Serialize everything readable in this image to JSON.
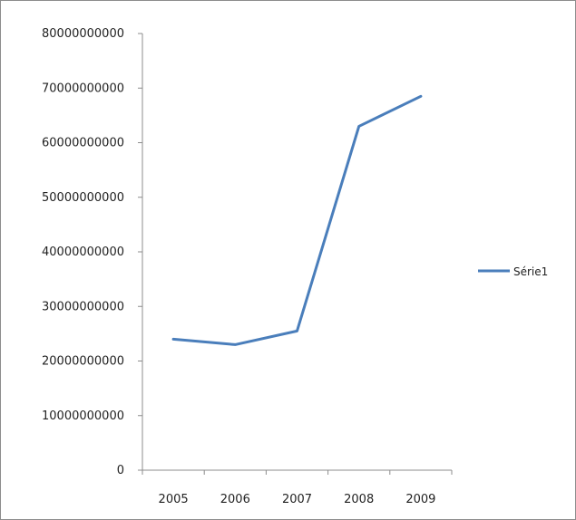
{
  "chart_data": {
    "type": "line",
    "title": "",
    "xlabel": "",
    "ylabel": "",
    "categories": [
      "2005",
      "2006",
      "2007",
      "2008",
      "2009"
    ],
    "series": [
      {
        "name": "Série1",
        "values": [
          24000000000,
          23000000000,
          25500000000,
          63000000000,
          68500000000
        ],
        "color": "#4a7ebb"
      }
    ],
    "ylim": [
      0,
      80000000000
    ],
    "yticks": [
      0,
      10000000000,
      20000000000,
      30000000000,
      40000000000,
      50000000000,
      60000000000,
      70000000000,
      80000000000
    ],
    "ytick_labels": [
      "0",
      "10000000000",
      "20000000000",
      "30000000000",
      "40000000000",
      "50000000000",
      "60000000000",
      "70000000000",
      "80000000000"
    ],
    "grid": false,
    "legend": "right"
  },
  "colors": {
    "axis": "#8c8c8c",
    "frame": "#8c8c8c",
    "text": "#222222"
  }
}
